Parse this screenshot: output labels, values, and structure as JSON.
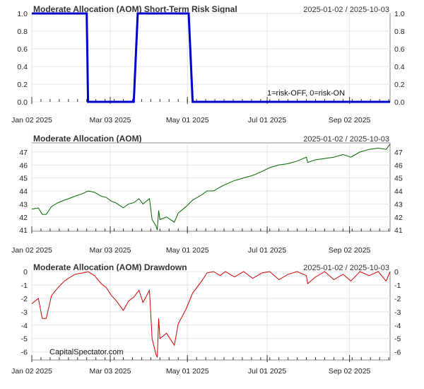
{
  "chart_data": [
    {
      "type": "line",
      "title": "Moderate Allocation (AOM) Short-Term Risk Signal",
      "date_range": "2025-01-02 / 2025-10-03",
      "annotation": "1=risk-OFF, 0=risk-ON",
      "x_tick_labels": [
        "Jan 02 2025",
        "Mar 03 2025",
        "May 01 2025",
        "Jul 01 2025",
        "Sep 02 2025"
      ],
      "y_tick_labels": [
        "0.0",
        "0.2",
        "0.4",
        "0.6",
        "0.8",
        "1.0"
      ],
      "ylim": [
        0,
        1
      ],
      "grid": true,
      "line_color": "#0000cc",
      "series": [
        {
          "x": [
            "2025-01-02",
            "2025-02-13",
            "2025-02-14",
            "2025-03-21",
            "2025-03-24",
            "2025-05-02",
            "2025-05-05",
            "2025-10-03"
          ],
          "values": [
            1,
            1,
            0,
            0,
            1,
            1,
            0,
            0
          ]
        }
      ]
    },
    {
      "type": "line",
      "title": "Moderate Allocation (AOM)",
      "date_range": "2025-01-02 / 2025-10-03",
      "x_tick_labels": [
        "Jan 02 2025",
        "Mar 03 2025",
        "May 01 2025",
        "Jul 01 2025",
        "Sep 02 2025"
      ],
      "y_tick_labels": [
        "41",
        "42",
        "43",
        "44",
        "45",
        "46",
        "47"
      ],
      "ylim": [
        40.9,
        47.7
      ],
      "grid": true,
      "line_color": "#006400",
      "series": [
        {
          "x": [
            "2025-01-02",
            "2025-01-07",
            "2025-01-10",
            "2025-01-13",
            "2025-01-17",
            "2025-01-22",
            "2025-01-27",
            "2025-01-30",
            "2025-02-04",
            "2025-02-10",
            "2025-02-14",
            "2025-02-19",
            "2025-02-24",
            "2025-02-28",
            "2025-03-04",
            "2025-03-07",
            "2025-03-10",
            "2025-03-13",
            "2025-03-17",
            "2025-03-21",
            "2025-03-25",
            "2025-03-28",
            "2025-04-02",
            "2025-04-03",
            "2025-04-04",
            "2025-04-07",
            "2025-04-08",
            "2025-04-09",
            "2025-04-10",
            "2025-04-15",
            "2025-04-21",
            "2025-04-24",
            "2025-04-30",
            "2025-05-05",
            "2025-05-12",
            "2025-05-16",
            "2025-05-21",
            "2025-05-26",
            "2025-05-30",
            "2025-06-06",
            "2025-06-13",
            "2025-06-20",
            "2025-06-27",
            "2025-07-03",
            "2025-07-10",
            "2025-07-17",
            "2025-07-24",
            "2025-07-31",
            "2025-08-01",
            "2025-08-07",
            "2025-08-14",
            "2025-08-21",
            "2025-08-28",
            "2025-09-03",
            "2025-09-10",
            "2025-09-17",
            "2025-09-24",
            "2025-09-30",
            "2025-10-03"
          ],
          "values": [
            42.6,
            42.7,
            42.2,
            42.2,
            42.8,
            43.1,
            43.3,
            43.4,
            43.6,
            43.8,
            44.0,
            43.9,
            43.6,
            43.5,
            43.2,
            43.1,
            42.9,
            42.7,
            43.0,
            43.1,
            43.4,
            43.0,
            43.4,
            42.6,
            41.8,
            41.3,
            41.0,
            42.5,
            41.8,
            42.0,
            41.6,
            42.3,
            42.8,
            43.3,
            43.7,
            44.0,
            44.0,
            44.3,
            44.5,
            44.8,
            45.0,
            45.2,
            45.5,
            45.8,
            46.0,
            46.1,
            46.3,
            46.6,
            46.2,
            46.4,
            46.5,
            46.6,
            46.8,
            46.6,
            47.0,
            47.2,
            47.3,
            47.2,
            47.6
          ]
        }
      ]
    },
    {
      "type": "line",
      "title": "Moderate Allocation (AOM) Drawdown",
      "date_range": "2025-01-02 / 2025-10-03",
      "x_tick_labels": [
        "Jan 02 2025",
        "Mar 03 2025",
        "May 01 2025",
        "Jul 01 2025",
        "Sep 02 2025"
      ],
      "y_tick_labels": [
        "-6",
        "-5",
        "-4",
        "-3",
        "-2",
        "-1",
        "0"
      ],
      "ylim": [
        -6.6,
        0
      ],
      "grid": true,
      "line_color": "#cc0000",
      "series": [
        {
          "x": [
            "2025-01-02",
            "2025-01-07",
            "2025-01-10",
            "2025-01-13",
            "2025-01-17",
            "2025-01-22",
            "2025-01-27",
            "2025-01-30",
            "2025-02-04",
            "2025-02-10",
            "2025-02-14",
            "2025-02-19",
            "2025-02-24",
            "2025-02-28",
            "2025-03-04",
            "2025-03-07",
            "2025-03-10",
            "2025-03-13",
            "2025-03-17",
            "2025-03-21",
            "2025-03-25",
            "2025-03-28",
            "2025-04-02",
            "2025-04-03",
            "2025-04-04",
            "2025-04-07",
            "2025-04-08",
            "2025-04-09",
            "2025-04-10",
            "2025-04-15",
            "2025-04-21",
            "2025-04-24",
            "2025-04-30",
            "2025-05-05",
            "2025-05-12",
            "2025-05-16",
            "2025-05-21",
            "2025-05-26",
            "2025-05-30",
            "2025-06-06",
            "2025-06-13",
            "2025-06-20",
            "2025-06-27",
            "2025-07-03",
            "2025-07-10",
            "2025-07-17",
            "2025-07-24",
            "2025-07-31",
            "2025-08-01",
            "2025-08-07",
            "2025-08-14",
            "2025-08-21",
            "2025-08-28",
            "2025-09-03",
            "2025-09-10",
            "2025-09-17",
            "2025-09-24",
            "2025-09-30",
            "2025-10-03"
          ],
          "values": [
            -2.4,
            -2.0,
            -3.5,
            -3.5,
            -1.8,
            -1.2,
            -0.7,
            -0.5,
            -0.2,
            -0.1,
            0.0,
            -0.3,
            -0.9,
            -1.2,
            -1.8,
            -2.1,
            -2.5,
            -2.9,
            -2.2,
            -1.9,
            -1.4,
            -2.3,
            -1.4,
            -3.2,
            -5.0,
            -6.2,
            -6.4,
            -3.5,
            -5.0,
            -4.6,
            -5.5,
            -3.9,
            -2.8,
            -1.6,
            -0.7,
            -0.1,
            0.0,
            -0.3,
            0.0,
            -0.4,
            0.0,
            -0.5,
            -0.1,
            0.0,
            -0.6,
            -0.2,
            0.0,
            -0.3,
            -0.9,
            -0.4,
            0.0,
            -0.6,
            -0.2,
            -0.7,
            0.0,
            -0.3,
            0.0,
            -0.7,
            0.0
          ]
        }
      ]
    }
  ],
  "watermark": "CapitalSpectator.com"
}
